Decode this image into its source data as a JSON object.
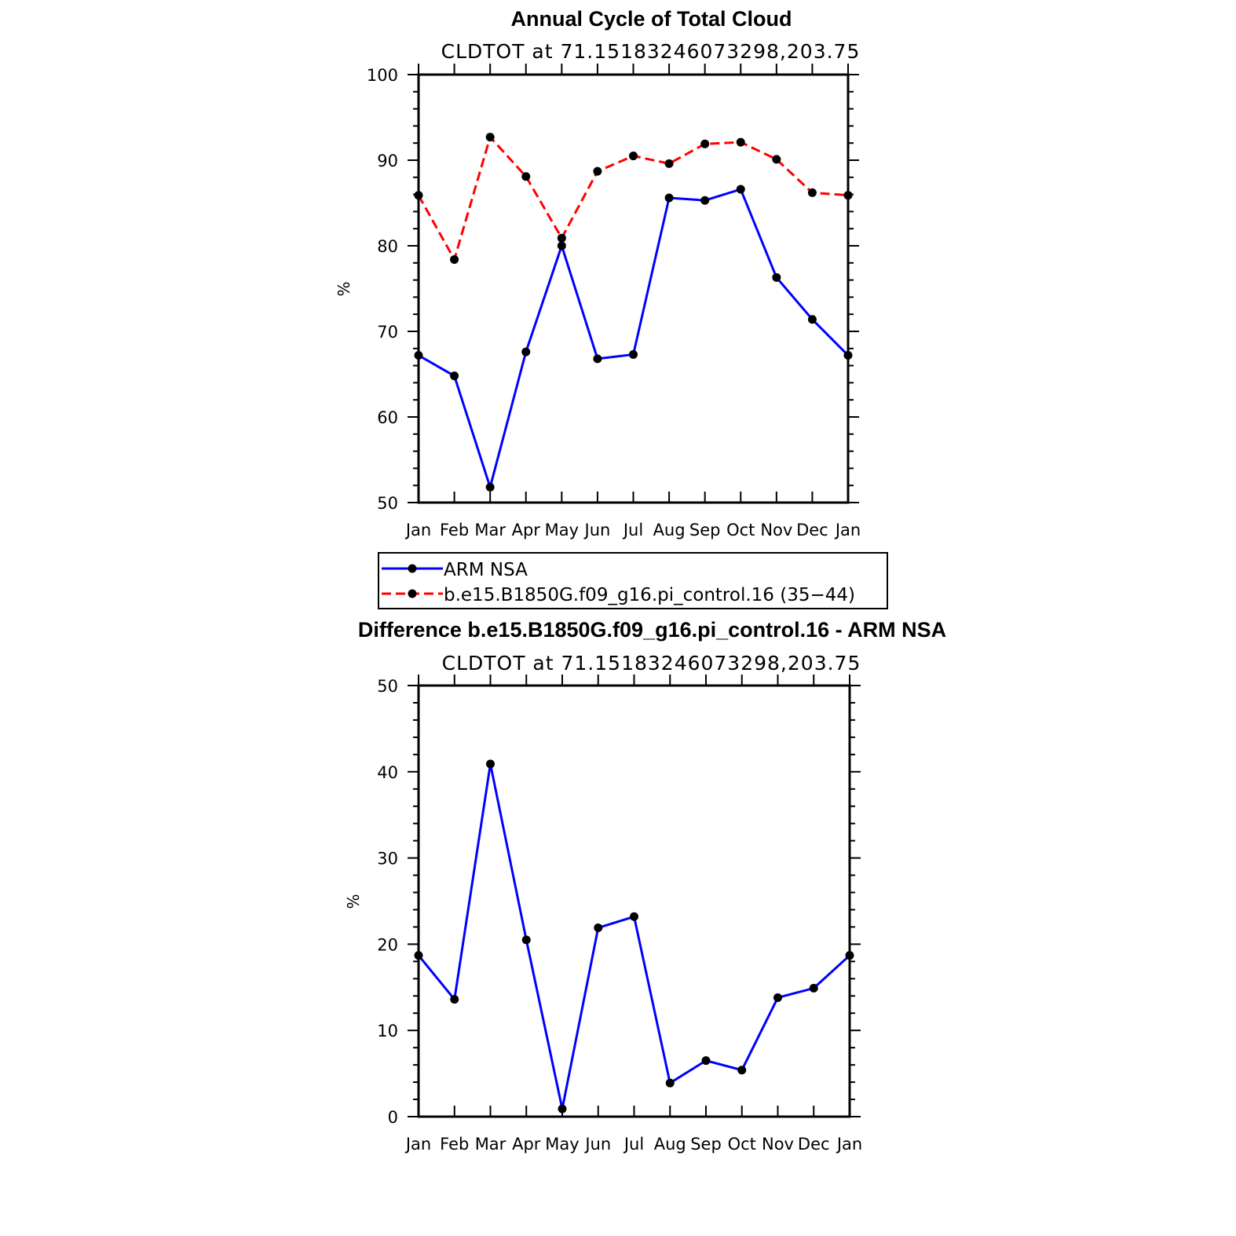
{
  "chart_data": [
    {
      "type": "line",
      "title": "Annual Cycle of Total Cloud",
      "subtitle": "CLDTOT at 71.15183246073298,203.75",
      "ylabel": "%",
      "xlabel": "",
      "categories": [
        "Jan",
        "Feb",
        "Mar",
        "Apr",
        "May",
        "Jun",
        "Jul",
        "Aug",
        "Sep",
        "Oct",
        "Nov",
        "Dec",
        "Jan"
      ],
      "ylim": [
        50,
        100
      ],
      "yticks": [
        50,
        60,
        70,
        80,
        90,
        100
      ],
      "series": [
        {
          "name": "ARM NSA",
          "color": "#0000ff",
          "dash": "solid",
          "values": [
            67.2,
            64.8,
            51.8,
            67.6,
            80.0,
            66.8,
            67.3,
            85.6,
            85.3,
            86.6,
            76.3,
            71.4,
            67.2
          ]
        },
        {
          "name": "b.e15.B1850G.f09_g16.pi_control.16 (35−44)",
          "color": "#ff0000",
          "dash": "dashed",
          "values": [
            85.9,
            78.4,
            92.7,
            88.1,
            80.9,
            88.7,
            90.5,
            89.6,
            91.9,
            92.1,
            90.1,
            86.2,
            85.9
          ]
        }
      ]
    },
    {
      "type": "line",
      "title": "Difference b.e15.B1850G.f09_g16.pi_control.16 - ARM NSA",
      "subtitle": "CLDTOT at 71.15183246073298,203.75",
      "ylabel": "%",
      "xlabel": "",
      "categories": [
        "Jan",
        "Feb",
        "Mar",
        "Apr",
        "May",
        "Jun",
        "Jul",
        "Aug",
        "Sep",
        "Oct",
        "Nov",
        "Dec",
        "Jan"
      ],
      "ylim": [
        0,
        50
      ],
      "yticks": [
        0,
        10,
        20,
        30,
        40,
        50
      ],
      "series": [
        {
          "color": "#0000ff",
          "dash": "solid",
          "values": [
            18.7,
            13.6,
            40.9,
            20.5,
            0.9,
            21.9,
            23.2,
            3.9,
            6.5,
            5.4,
            13.8,
            14.9,
            18.7
          ]
        }
      ]
    }
  ]
}
